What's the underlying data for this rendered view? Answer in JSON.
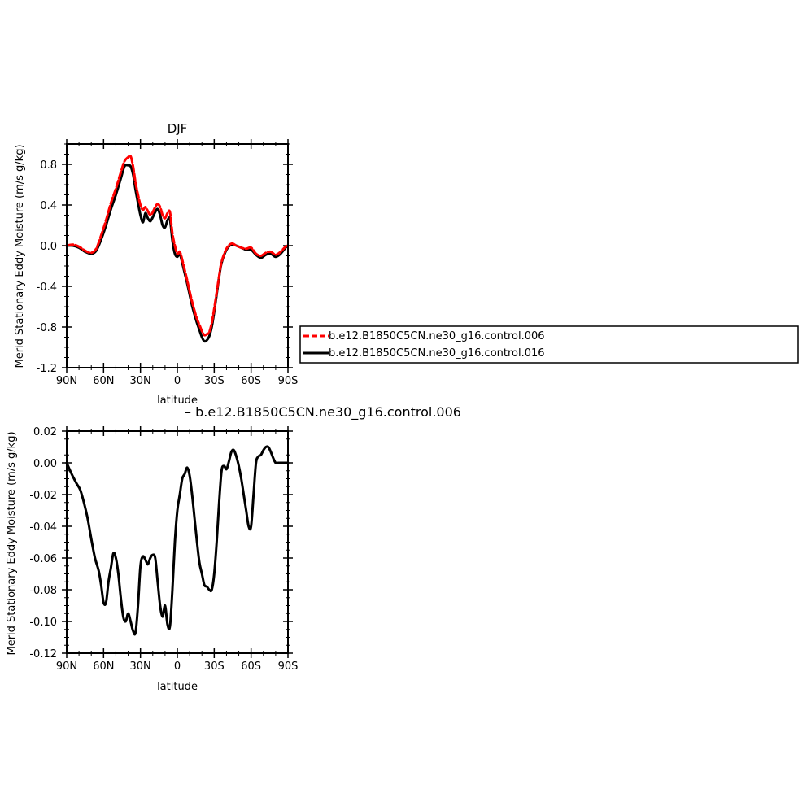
{
  "chart_data": [
    {
      "type": "line",
      "title": "DJF",
      "xlabel": "latitude",
      "ylabel": "Merid Stationary Eddy Moisture (m/s g/kg)",
      "xlim": [
        -90,
        90
      ],
      "ylim": [
        -1.2,
        1.0
      ],
      "xticks": [
        -90,
        -60,
        -30,
        0,
        30,
        60,
        90
      ],
      "xtick_labels": [
        "90N",
        "60N",
        "30N",
        "0",
        "30S",
        "60S",
        "90S"
      ],
      "yticks": [
        -1.2,
        -0.8,
        -0.4,
        0.0,
        0.4,
        0.8
      ],
      "ytick_labels": [
        "-1.2",
        "-0.8",
        "-0.4",
        "0.0",
        "0.4",
        "0.8"
      ],
      "grid": false,
      "legend": "right",
      "series": [
        {
          "name": "b.e12.B1850C5CN.ne30_g16.control.006",
          "color": "#ff0000",
          "dash": "dashed",
          "x": [
            -90,
            -85,
            -80,
            -75,
            -70,
            -66,
            -62,
            -58,
            -54,
            -50,
            -46,
            -43,
            -40,
            -38,
            -36,
            -34,
            -32,
            -30,
            -28,
            -26,
            -24,
            -22,
            -20,
            -18,
            -16,
            -14,
            -12,
            -10,
            -8,
            -6,
            -4,
            -2,
            0,
            2,
            4,
            6,
            8,
            10,
            12,
            14,
            16,
            18,
            20,
            22,
            24,
            26,
            28,
            30,
            32,
            34,
            36,
            40,
            44,
            48,
            52,
            56,
            60,
            64,
            68,
            72,
            76,
            80,
            84,
            88,
            90
          ],
          "values": [
            0.0,
            0.01,
            -0.01,
            -0.05,
            -0.07,
            -0.03,
            0.1,
            0.25,
            0.42,
            0.56,
            0.72,
            0.83,
            0.87,
            0.88,
            0.78,
            0.62,
            0.5,
            0.4,
            0.35,
            0.38,
            0.34,
            0.3,
            0.33,
            0.38,
            0.41,
            0.38,
            0.3,
            0.27,
            0.32,
            0.33,
            0.12,
            0.0,
            -0.08,
            -0.06,
            -0.14,
            -0.24,
            -0.34,
            -0.45,
            -0.55,
            -0.64,
            -0.72,
            -0.78,
            -0.84,
            -0.88,
            -0.87,
            -0.85,
            -0.76,
            -0.62,
            -0.46,
            -0.3,
            -0.16,
            -0.03,
            0.02,
            0.0,
            -0.02,
            -0.03,
            -0.02,
            -0.08,
            -0.1,
            -0.07,
            -0.06,
            -0.09,
            -0.06,
            -0.01,
            0.0
          ]
        },
        {
          "name": "b.e12.B1850C5CN.ne30_g16.control.016",
          "color": "#000000",
          "dash": "solid",
          "x": [
            -90,
            -85,
            -80,
            -75,
            -70,
            -66,
            -62,
            -58,
            -54,
            -50,
            -46,
            -43,
            -40,
            -38,
            -36,
            -34,
            -32,
            -30,
            -28,
            -26,
            -24,
            -22,
            -20,
            -18,
            -16,
            -14,
            -12,
            -10,
            -8,
            -6,
            -4,
            -2,
            0,
            2,
            4,
            6,
            8,
            10,
            12,
            14,
            16,
            18,
            20,
            22,
            24,
            26,
            28,
            30,
            32,
            34,
            36,
            40,
            44,
            48,
            52,
            56,
            60,
            64,
            68,
            72,
            76,
            80,
            84,
            88,
            90
          ],
          "values": [
            0.0,
            0.0,
            -0.02,
            -0.06,
            -0.08,
            -0.05,
            0.06,
            0.2,
            0.36,
            0.5,
            0.66,
            0.78,
            0.79,
            0.78,
            0.7,
            0.55,
            0.42,
            0.3,
            0.23,
            0.32,
            0.27,
            0.24,
            0.28,
            0.33,
            0.36,
            0.3,
            0.2,
            0.18,
            0.25,
            0.26,
            0.05,
            -0.08,
            -0.11,
            -0.08,
            -0.17,
            -0.27,
            -0.37,
            -0.48,
            -0.59,
            -0.68,
            -0.76,
            -0.83,
            -0.9,
            -0.94,
            -0.93,
            -0.89,
            -0.8,
            -0.65,
            -0.48,
            -0.31,
            -0.17,
            -0.04,
            0.01,
            0.0,
            -0.02,
            -0.04,
            -0.04,
            -0.09,
            -0.12,
            -0.09,
            -0.08,
            -0.11,
            -0.08,
            -0.02,
            0.0
          ]
        }
      ]
    },
    {
      "type": "line",
      "title": "– b.e12.B1850C5CN.ne30_g16.control.006",
      "xlabel": "latitude",
      "ylabel": "Merid Stationary Eddy Moisture (m/s g/kg)",
      "xlim": [
        -90,
        90
      ],
      "ylim": [
        -0.12,
        0.02
      ],
      "xticks": [
        -90,
        -60,
        -30,
        0,
        30,
        60,
        90
      ],
      "xtick_labels": [
        "90N",
        "60N",
        "30N",
        "0",
        "30S",
        "60S",
        "90S"
      ],
      "yticks": [
        -0.12,
        -0.1,
        -0.08,
        -0.06,
        -0.04,
        -0.02,
        0.0,
        0.02
      ],
      "ytick_labels": [
        "-0.12",
        "-0.10",
        "-0.08",
        "-0.06",
        "-0.04",
        "-0.02",
        "0.00",
        "0.02"
      ],
      "grid": false,
      "series": [
        {
          "color": "#000000",
          "dash": "solid",
          "x": [
            -90,
            -86,
            -82,
            -79,
            -76,
            -73,
            -70,
            -67,
            -64,
            -62,
            -60,
            -58,
            -56,
            -54,
            -52,
            -50,
            -48,
            -46,
            -44,
            -42,
            -40,
            -38,
            -36,
            -34,
            -32,
            -30,
            -28,
            -26,
            -24,
            -22,
            -20,
            -18,
            -16,
            -14,
            -12,
            -10,
            -8,
            -6,
            -4,
            -2,
            0,
            2,
            4,
            6,
            8,
            10,
            12,
            14,
            16,
            18,
            20,
            22,
            24,
            26,
            28,
            30,
            32,
            34,
            36,
            38,
            40,
            42,
            44,
            46,
            48,
            50,
            52,
            54,
            56,
            58,
            60,
            62,
            64,
            66,
            68,
            70,
            72,
            74,
            76,
            78,
            80,
            82,
            84,
            86,
            88,
            90
          ],
          "values": [
            0.0,
            -0.007,
            -0.013,
            -0.017,
            -0.025,
            -0.035,
            -0.048,
            -0.06,
            -0.068,
            -0.077,
            -0.088,
            -0.088,
            -0.075,
            -0.066,
            -0.057,
            -0.06,
            -0.07,
            -0.085,
            -0.097,
            -0.1,
            -0.095,
            -0.1,
            -0.106,
            -0.107,
            -0.09,
            -0.065,
            -0.059,
            -0.061,
            -0.064,
            -0.06,
            -0.058,
            -0.06,
            -0.075,
            -0.09,
            -0.097,
            -0.09,
            -0.102,
            -0.103,
            -0.08,
            -0.05,
            -0.03,
            -0.02,
            -0.01,
            -0.007,
            -0.003,
            -0.008,
            -0.02,
            -0.035,
            -0.05,
            -0.063,
            -0.07,
            -0.077,
            -0.078,
            -0.08,
            -0.08,
            -0.07,
            -0.05,
            -0.025,
            -0.005,
            -0.002,
            -0.004,
            0.001,
            0.007,
            0.008,
            0.004,
            -0.002,
            -0.01,
            -0.02,
            -0.03,
            -0.04,
            -0.04,
            -0.02,
            0.0,
            0.004,
            0.005,
            0.008,
            0.01,
            0.01,
            0.007,
            0.003,
            0.0,
            0.0,
            0.0,
            0.0,
            0.0,
            0.0
          ]
        }
      ]
    }
  ]
}
